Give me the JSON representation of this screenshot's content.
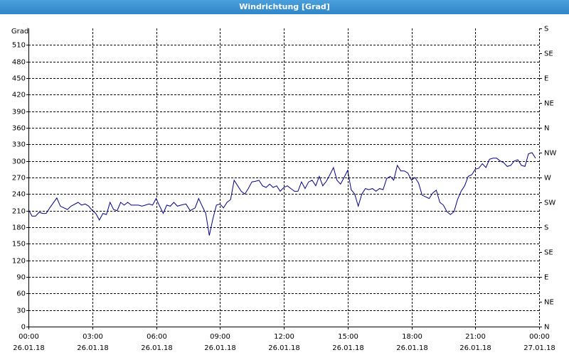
{
  "chart_data": {
    "type": "line",
    "title": "Windrichtung [Grad]",
    "ylabel": "Grad",
    "xlim": [
      0,
      1440
    ],
    "xticks": [
      {
        "value": 0,
        "label": "00:00",
        "date": "26.01.18"
      },
      {
        "value": 180,
        "label": "03:00",
        "date": "26.01.18"
      },
      {
        "value": 360,
        "label": "06:00",
        "date": "26.01.18"
      },
      {
        "value": 540,
        "label": "09:00",
        "date": "26.01.18"
      },
      {
        "value": 720,
        "label": "12:00",
        "date": "26.01.18"
      },
      {
        "value": 900,
        "label": "15:00",
        "date": "26.01.18"
      },
      {
        "value": 1080,
        "label": "18:00",
        "date": "26.01.18"
      },
      {
        "value": 1260,
        "label": "21:00",
        "date": "26.01.18"
      },
      {
        "value": 1440,
        "label": "00:00",
        "date": "27.01.18"
      }
    ],
    "ylim": [
      0,
      540
    ],
    "yticks": [
      0,
      30,
      60,
      90,
      120,
      150,
      180,
      210,
      240,
      270,
      300,
      330,
      360,
      390,
      420,
      450,
      480,
      510
    ],
    "y2lim": [
      0,
      540
    ],
    "y2ticks": [
      {
        "value": 0,
        "label": "N"
      },
      {
        "value": 45,
        "label": "NE"
      },
      {
        "value": 90,
        "label": "E"
      },
      {
        "value": 135,
        "label": "SE"
      },
      {
        "value": 180,
        "label": "S"
      },
      {
        "value": 225,
        "label": "SW"
      },
      {
        "value": 270,
        "label": "W"
      },
      {
        "value": 315,
        "label": "NW"
      },
      {
        "value": 360,
        "label": "N"
      },
      {
        "value": 405,
        "label": "NE"
      },
      {
        "value": 450,
        "label": "E"
      },
      {
        "value": 495,
        "label": "SE"
      },
      {
        "value": 540,
        "label": "S"
      }
    ],
    "grid": true,
    "series": [
      {
        "color": "#00008b",
        "x": [
          0,
          10,
          20,
          30,
          40,
          50,
          60,
          80,
          90,
          110,
          120,
          140,
          150,
          160,
          170,
          180,
          190,
          200,
          210,
          220,
          230,
          240,
          250,
          260,
          270,
          280,
          290,
          310,
          320,
          340,
          350,
          360,
          370,
          380,
          390,
          400,
          410,
          420,
          430,
          444,
          456,
          470,
          480,
          490,
          500,
          510,
          520,
          530,
          540,
          550,
          560,
          570,
          580,
          590,
          600,
          610,
          620,
          630,
          640,
          650,
          660,
          670,
          680,
          690,
          700,
          710,
          720,
          730,
          740,
          750,
          760,
          770,
          780,
          790,
          800,
          810,
          820,
          830,
          840,
          850,
          860,
          870,
          880,
          890,
          900,
          910,
          920,
          930,
          940,
          950,
          960,
          970,
          980,
          990,
          1000,
          1010,
          1020,
          1030,
          1040,
          1050,
          1060,
          1070,
          1080,
          1090,
          1100,
          1110,
          1120,
          1130,
          1140,
          1150,
          1160,
          1170,
          1180,
          1190,
          1200,
          1210,
          1220,
          1230,
          1240,
          1250,
          1260,
          1270,
          1280,
          1290,
          1300,
          1310,
          1320,
          1330,
          1340,
          1350,
          1360,
          1370,
          1380,
          1390,
          1400,
          1410,
          1420,
          1430
        ],
        "values": [
          212,
          200,
          200,
          207,
          205,
          205,
          215,
          233,
          218,
          212,
          218,
          225,
          220,
          222,
          218,
          210,
          205,
          193,
          205,
          203,
          225,
          212,
          210,
          225,
          220,
          225,
          220,
          220,
          218,
          222,
          220,
          232,
          218,
          205,
          220,
          218,
          225,
          218,
          220,
          222,
          210,
          215,
          232,
          218,
          205,
          165,
          195,
          220,
          222,
          215,
          225,
          230,
          265,
          255,
          245,
          240,
          250,
          262,
          263,
          265,
          255,
          252,
          258,
          252,
          255,
          245,
          252,
          255,
          250,
          245,
          245,
          262,
          250,
          262,
          265,
          255,
          272,
          255,
          263,
          275,
          288,
          265,
          258,
          270,
          283,
          248,
          240,
          218,
          240,
          250,
          248,
          250,
          245,
          250,
          248,
          268,
          272,
          265,
          292,
          282,
          282,
          278,
          265,
          270,
          260,
          238,
          235,
          232,
          242,
          247,
          225,
          220,
          208,
          203,
          208,
          230,
          245,
          255,
          272,
          275,
          285,
          287,
          295,
          288,
          303,
          305,
          305,
          300,
          297,
          290,
          292,
          300,
          302,
          292,
          290,
          313,
          315,
          305
        ]
      }
    ]
  }
}
